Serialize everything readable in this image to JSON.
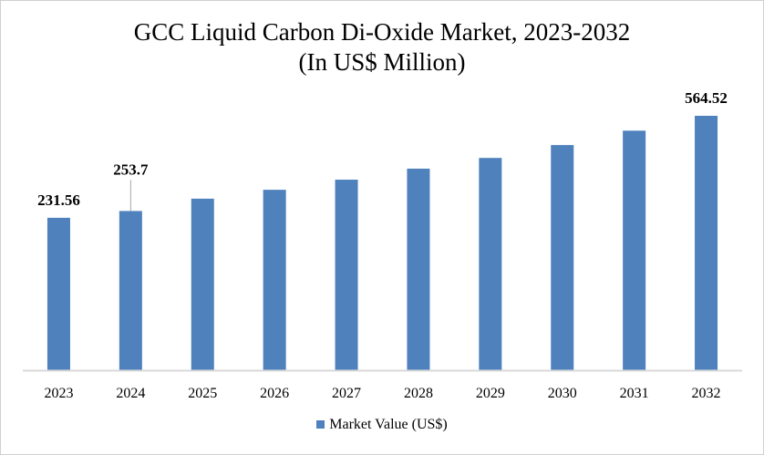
{
  "chart_data": {
    "type": "bar",
    "title": "GCC Liquid Carbon Di-Oxide Market, 2023-2032",
    "subtitle": "(In US$ Million)",
    "categories": [
      "2023",
      "2024",
      "2025",
      "2026",
      "2027",
      "2028",
      "2029",
      "2030",
      "2031",
      "2032"
    ],
    "series": [
      {
        "name": "Market Value (US$)",
        "color": "#4f81bd",
        "values": [
          231.56,
          253.7,
          294,
          323,
          356,
          392,
          427,
          469,
          516,
          564.52
        ]
      }
    ],
    "data_labels": [
      {
        "category": "2023",
        "text": "231.56"
      },
      {
        "category": "2024",
        "text": "253.7"
      },
      {
        "category": "2032",
        "text": "564.52"
      }
    ],
    "xlabel": "",
    "ylabel": "",
    "grid": false,
    "y_axis_visible": false,
    "legend_position": "bottom"
  }
}
